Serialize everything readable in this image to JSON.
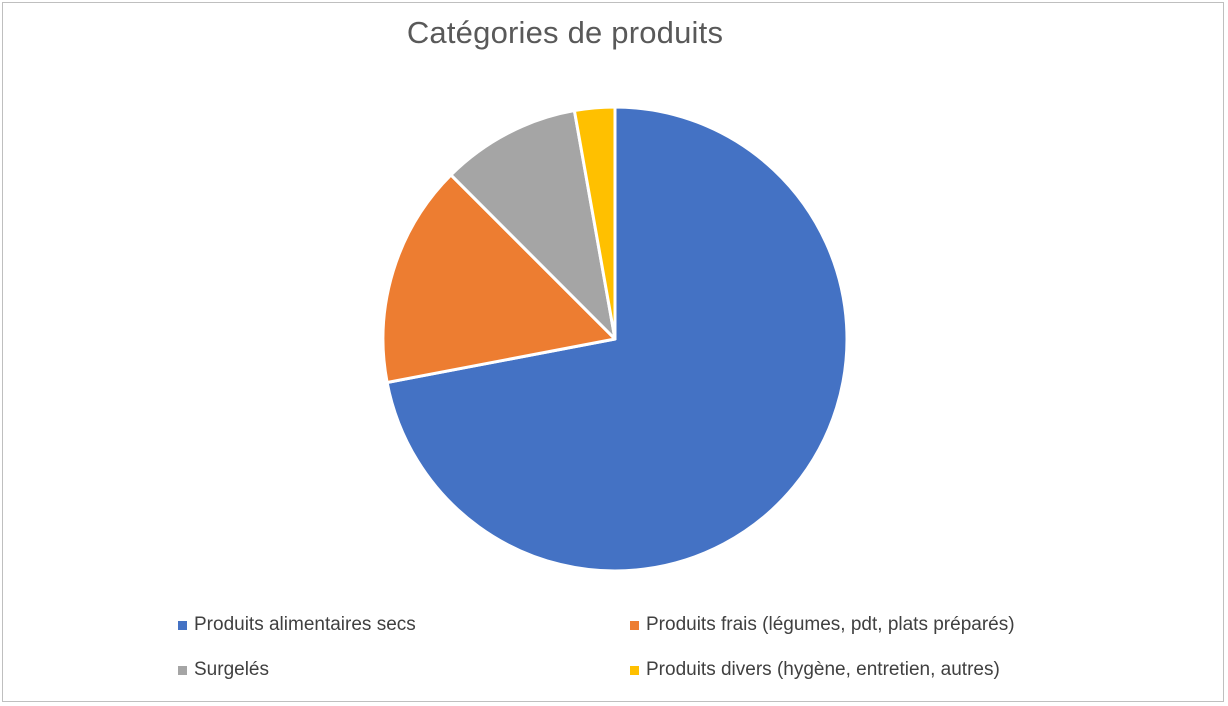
{
  "chart_data": {
    "type": "pie",
    "title": "Catégories de produits",
    "categories": [
      "Produits alimentaires secs",
      "Produits frais (légumes, pdt, plats préparés)",
      "Surgelés",
      "Produits divers (hygène, entretien, autres)"
    ],
    "values": [
      72,
      15.5,
      9.7,
      2.8
    ],
    "colors": [
      "#4472C4",
      "#ED7D31",
      "#A5A5A5",
      "#FFC000"
    ],
    "legend_position": "bottom"
  }
}
